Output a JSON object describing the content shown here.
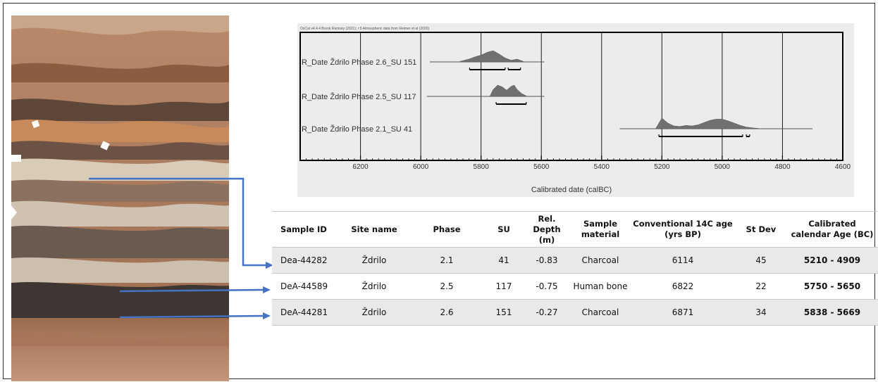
{
  "chart_data": {
    "type": "oxcal-multiplot",
    "header": "OxCal v4.4.4 Bronk Ramsey (2021); r:5 Atmospheric data from Reimer et al (2020)",
    "xlabel": "Calibrated date (calBC)",
    "xlim": [
      6400,
      4600
    ],
    "x_reversed": true,
    "ticks": [
      "6200",
      "6000",
      "5800",
      "5600",
      "5400",
      "5200",
      "5000",
      "4800",
      "4600"
    ],
    "tick_values": [
      6200,
      6000,
      5800,
      5600,
      5400,
      5200,
      5000,
      4800,
      4600
    ],
    "series": [
      {
        "name": "R_Date Ždrilo Phase 2.6_SU 151",
        "line_range": [
          5970,
          5590
        ],
        "density_x": [
          5870,
          5840,
          5820,
          5800,
          5780,
          5760,
          5740,
          5720,
          5700,
          5680,
          5660
        ],
        "density_y": [
          0.05,
          0.25,
          0.45,
          0.6,
          0.85,
          1.0,
          0.7,
          0.35,
          0.15,
          0.25,
          0.05
        ],
        "ranges": [
          [
            5838,
            5720
          ],
          [
            5710,
            5669
          ]
        ]
      },
      {
        "name": "R_Date Ždrilo Phase 2.5_SU 117",
        "line_range": [
          5980,
          5590
        ],
        "density_x": [
          5770,
          5760,
          5745,
          5730,
          5715,
          5700,
          5690,
          5680,
          5665,
          5650
        ],
        "density_y": [
          0.05,
          0.6,
          1.0,
          0.85,
          0.55,
          0.9,
          1.0,
          0.6,
          0.25,
          0.05
        ],
        "ranges": [
          [
            5750,
            5650
          ]
        ]
      },
      {
        "name": "R_Date Ždrilo Phase 2.1_SU 41",
        "line_range": [
          5340,
          4700
        ],
        "density_x": [
          5220,
          5200,
          5180,
          5160,
          5140,
          5120,
          5100,
          5080,
          5060,
          5040,
          5020,
          5000,
          4980,
          4960,
          4940,
          4920,
          4900,
          4880
        ],
        "density_y": [
          0.05,
          0.95,
          0.5,
          0.25,
          0.2,
          0.3,
          0.25,
          0.35,
          0.55,
          0.75,
          0.85,
          0.85,
          0.7,
          0.5,
          0.3,
          0.15,
          0.08,
          0.03
        ],
        "ranges": [
          [
            5210,
            4932
          ],
          [
            4920,
            4909
          ]
        ]
      }
    ]
  },
  "table": {
    "headers": [
      "Sample ID",
      "Site name",
      "Phase",
      "SU",
      "Rel.\nDepth (m)",
      "Sample\nmaterial",
      "Conventional 14C age\n(yrs BP)",
      "St Dev",
      "Calibrated\ncalendar Age (BC)"
    ],
    "rows": [
      [
        "Dea-44282",
        "Ždrilo",
        "2.1",
        "41",
        "-0.83",
        "Charcoal",
        "6114",
        "45",
        "5210 - 4909"
      ],
      [
        "DeA-44589",
        "Ždrilo",
        "2.5",
        "117",
        "-0.75",
        "Human bone",
        "6822",
        "22",
        "5750 - 5650"
      ],
      [
        "DeA-44281",
        "Ždrilo",
        "2.6",
        "151",
        "-0.27",
        "Charcoal",
        "6871",
        "34",
        "5838 - 5669"
      ]
    ]
  },
  "colors": {
    "arrow": "#4472c4",
    "chart_background": "#ececec",
    "density_fill": "#707070",
    "row_shade": "#e9e9e9"
  }
}
